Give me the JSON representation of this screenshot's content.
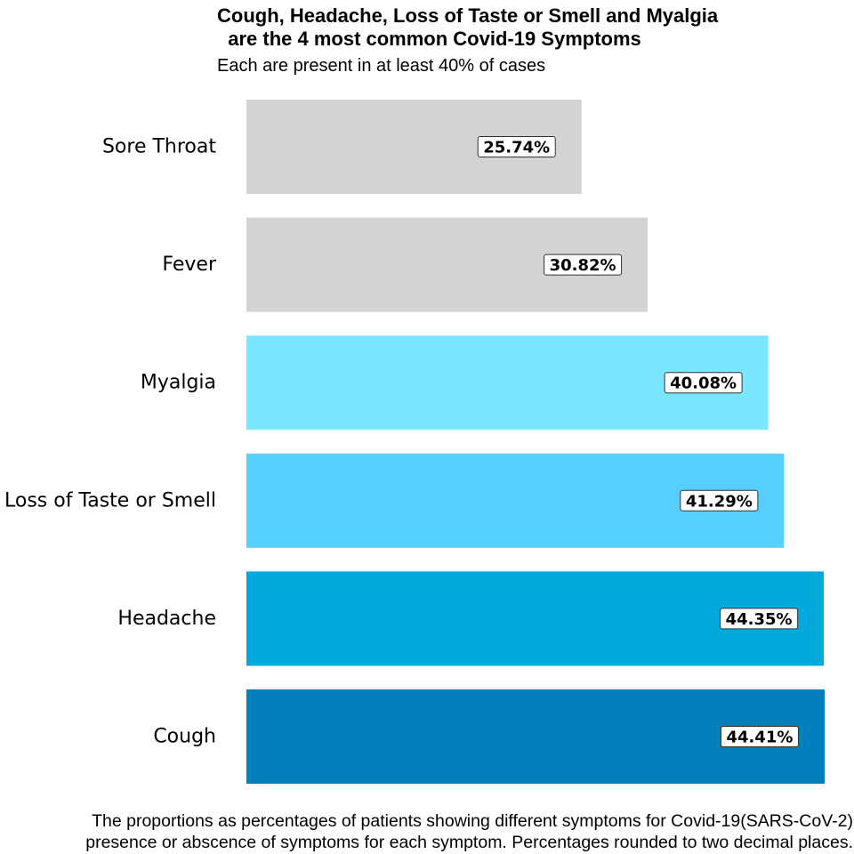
{
  "title": "Cough, Headache, Loss of Taste or Smell and Myalgia\n  are the 4 most common Covid-19 Symptoms",
  "subtitle": "Each are present in at least 40% of cases",
  "caption": {
    "line1": "The proportions as percentages of patients showing different symptoms for Covid-19(SARS-CoV-2)",
    "line2": "presence or abscence of symptoms for each symptom. Percentages rounded to two decimal places."
  },
  "chart_data": {
    "type": "bar",
    "orientation": "horizontal",
    "categories": [
      "Sore Throat",
      "Fever",
      "Myalgia",
      "Loss of Taste or Smell",
      "Headache",
      "Cough"
    ],
    "values": [
      25.74,
      30.82,
      40.08,
      41.29,
      44.35,
      44.41
    ],
    "data_labels": [
      "25.74%",
      "30.82%",
      "40.08%",
      "41.29%",
      "44.35%",
      "44.41%"
    ],
    "colors": [
      "#d3d3d3",
      "#d3d3d3",
      "#7be6ff",
      "#56cfff",
      "#00a8dc",
      "#017fbd"
    ],
    "xlim": [
      0,
      44.41
    ],
    "grid": false,
    "axis_ticks": false
  }
}
